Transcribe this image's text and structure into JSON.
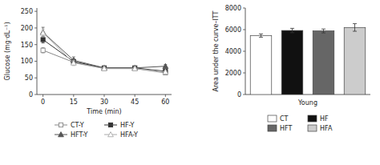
{
  "chart_data": [
    {
      "type": "line",
      "x": [
        0,
        15,
        30,
        45,
        60
      ],
      "xlabel": "Time (min)",
      "ylabel": "Glucose (mg·dL⁻¹)",
      "xlim": [
        -3,
        63
      ],
      "ylim": [
        0,
        260
      ],
      "xticks": [
        0,
        15,
        30,
        45,
        60
      ],
      "yticks": [
        0,
        50,
        100,
        150,
        200,
        250
      ],
      "grid": false,
      "legend": "bottom",
      "series": [
        {
          "name": "CT-Y",
          "color": "#888888",
          "marker": "square-open",
          "line_style": "solid",
          "values": [
            133,
            97,
            78,
            78,
            65
          ],
          "errors": [
            8,
            5,
            4,
            4,
            4
          ]
        },
        {
          "name": "HF-Y",
          "color": "#333333",
          "marker": "square",
          "line_style": "solid",
          "values": [
            165,
            99,
            80,
            80,
            70
          ],
          "errors": [
            10,
            8,
            5,
            5,
            5
          ]
        },
        {
          "name": "HFT-Y",
          "color": "#555555",
          "marker": "triangle",
          "line_style": "solid",
          "values": [
            187,
            103,
            80,
            80,
            85
          ],
          "errors": [
            15,
            10,
            5,
            5,
            5
          ]
        },
        {
          "name": "HFA-Y",
          "color": "#aaaaaa",
          "marker": "triangle-open",
          "line_style": "solid",
          "values": [
            185,
            95,
            78,
            78,
            68
          ],
          "errors": [
            12,
            8,
            5,
            5,
            4
          ]
        }
      ]
    },
    {
      "type": "bar",
      "categories": [
        "CT",
        "HF",
        "HFT",
        "HFA"
      ],
      "values": [
        5450,
        5920,
        5880,
        6200
      ],
      "errors": [
        150,
        200,
        180,
        350
      ],
      "colors": [
        "white",
        "#111111",
        "#666666",
        "#cccccc"
      ],
      "xlabel": "Young",
      "ylabel": "Area under the curve–ITT",
      "ylim": [
        0,
        8000
      ],
      "yticks": [
        0,
        2000,
        4000,
        6000,
        8000
      ],
      "grid": false,
      "legend": "bottom",
      "tick_labels": "y"
    }
  ]
}
